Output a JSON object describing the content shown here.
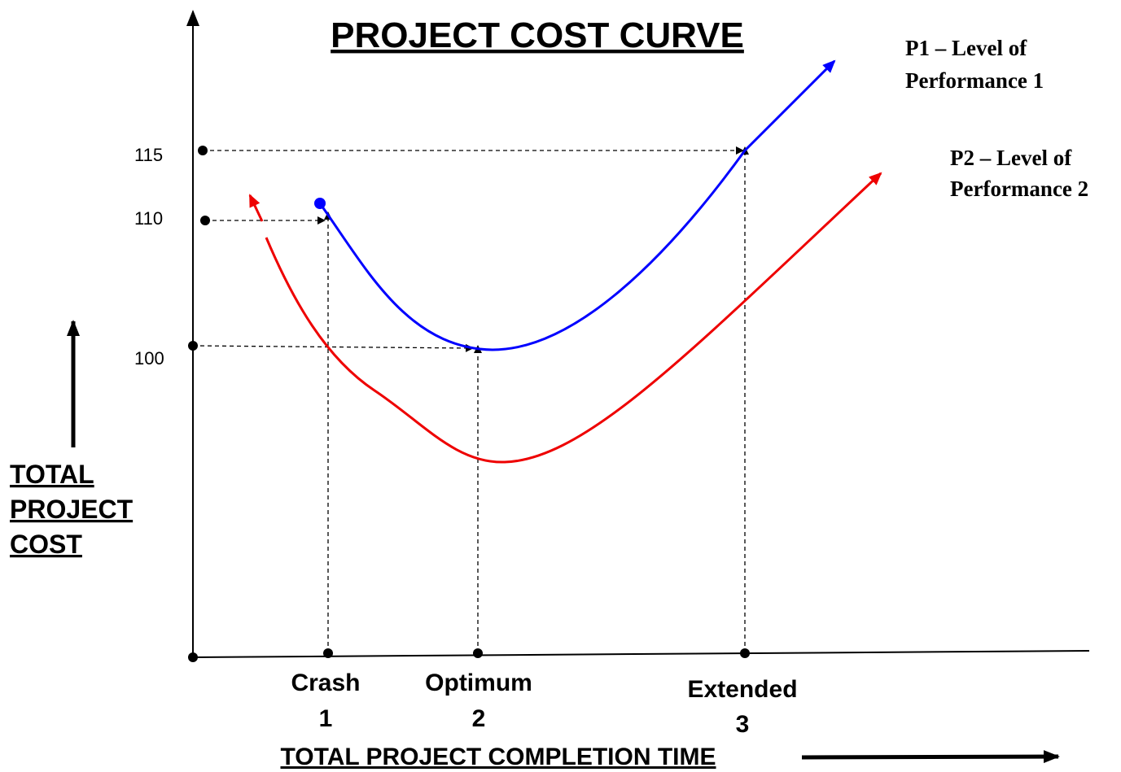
{
  "title": "PROJECT COST CURVE",
  "y_axis_label": [
    "TOTAL",
    "PROJECT",
    "COST"
  ],
  "x_axis_label": "TOTAL PROJECT COMPLETION TIME",
  "cost_levels": [
    115,
    110,
    100
  ],
  "time_points": [
    {
      "name": "Crash",
      "number": 1
    },
    {
      "name": "Optimum",
      "number": 2
    },
    {
      "name": "Extended",
      "number": 3
    }
  ],
  "curves": [
    {
      "label": [
        "P1 – Level of",
        "Performance 1"
      ]
    },
    {
      "label": [
        "P2 – Level of",
        "Performance 2"
      ]
    }
  ]
}
